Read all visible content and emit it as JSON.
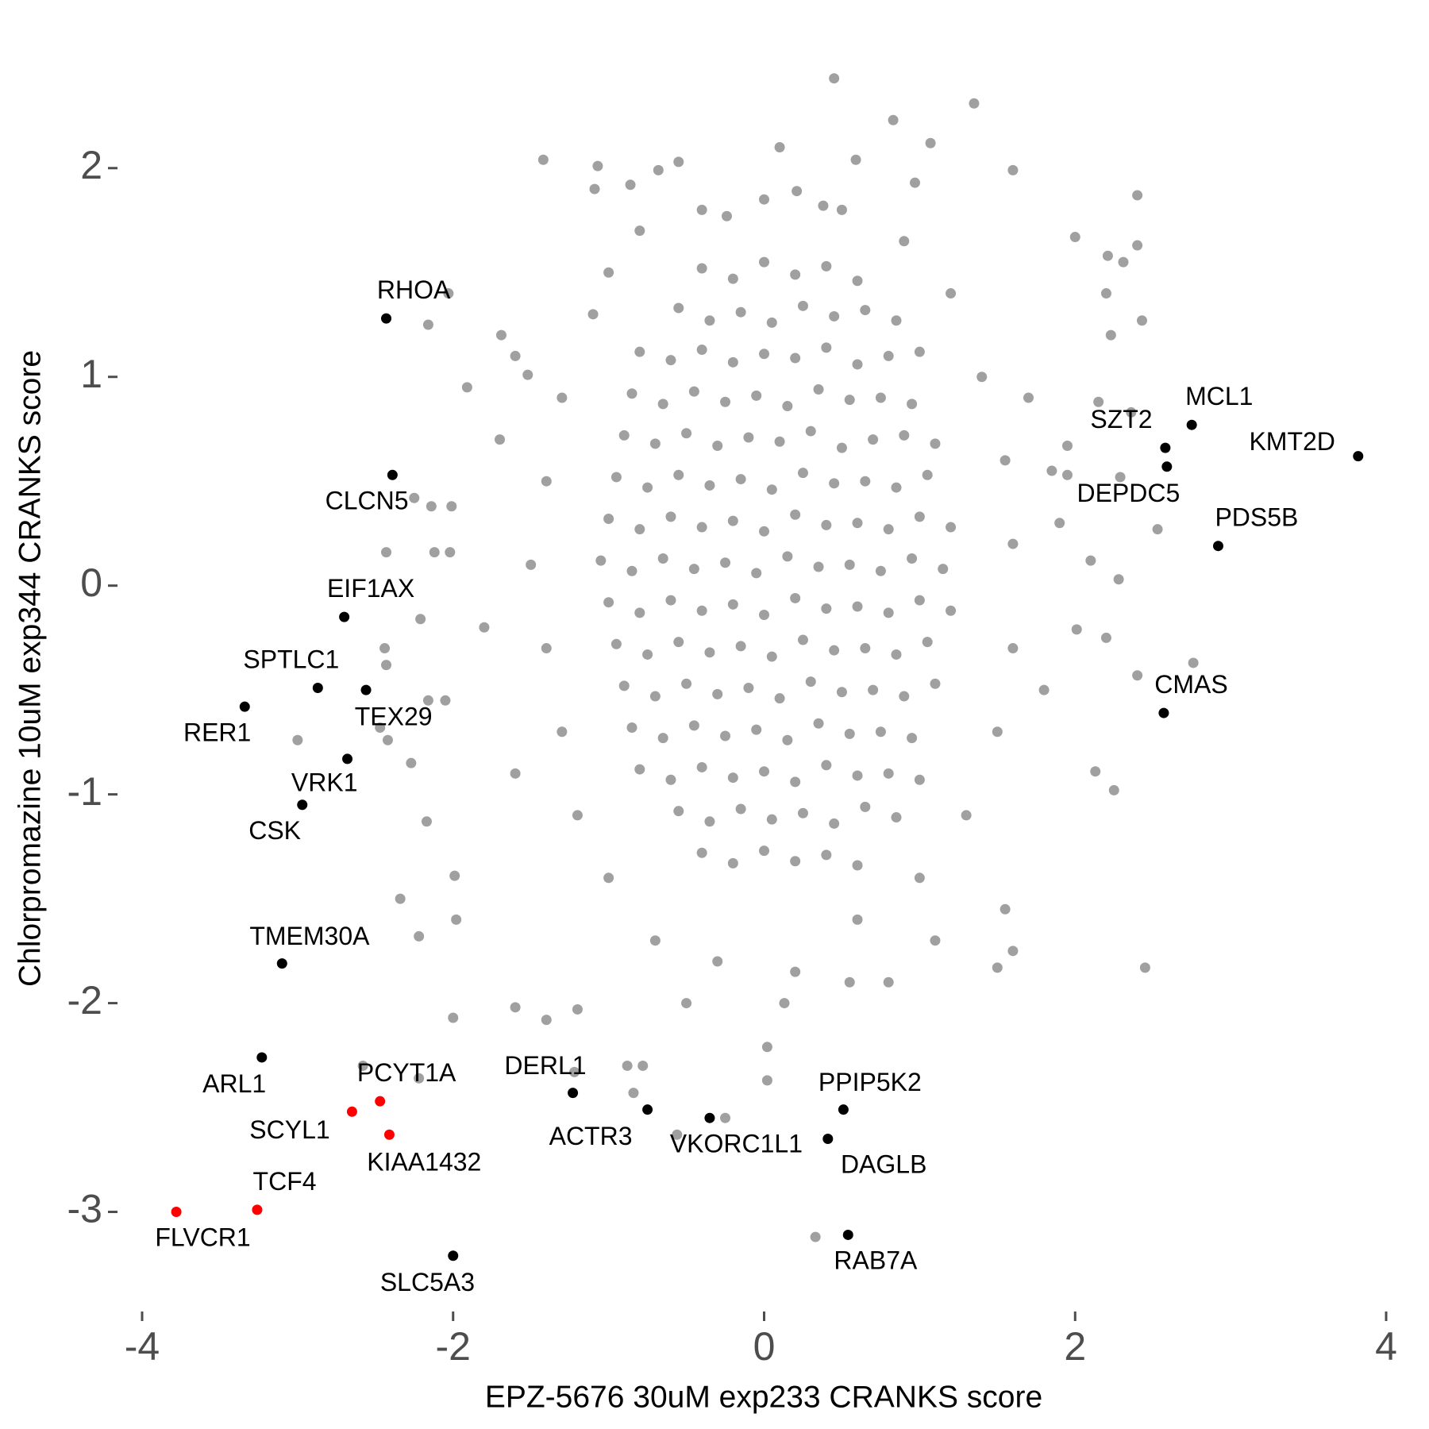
{
  "chart_data": {
    "type": "scatter",
    "x_label": "EPZ-5676 30uM exp233 CRANKS score",
    "y_label": "Chlorpromazine 10uM exp344 CRANKS score",
    "xlim": [
      -4.1,
      4.1
    ],
    "ylim": [
      -3.5,
      2.6
    ],
    "xticks": [
      -4,
      -2,
      0,
      2,
      4
    ],
    "yticks": [
      -3,
      -2,
      -1,
      0,
      1,
      2
    ],
    "grid": false,
    "series": [
      {
        "color": "#a0a0a0",
        "x": [
          0.45,
          1.35,
          0.83,
          1.07,
          0.1,
          -1.42,
          -1.07,
          0.59,
          1.6,
          -0.68,
          -0.55,
          -1.09,
          -0.86,
          0.97,
          0.21,
          0.38,
          -0.24,
          2.4,
          2.4,
          2.0,
          2.21,
          2.31,
          2.2,
          2.43,
          2.23,
          -2.03,
          -2.16,
          -1.69,
          -1.91,
          -1.52,
          2.36,
          2.15,
          1.95,
          1.95,
          2.53,
          2.29,
          -2.25,
          -2.14,
          -2.01,
          -2.43,
          -2.02,
          -2.12,
          -2.21,
          -2.44,
          -2.43,
          -2.05,
          -2.16,
          -3.0,
          -2.42,
          -2.27,
          -2.47,
          -2.17,
          -1.99,
          -2.34,
          -1.98,
          -2.22,
          -2.0,
          -1.22,
          -0.88,
          -0.78,
          -0.84,
          -2.22,
          -2.58,
          -0.56,
          -0.25,
          0.02,
          0.02,
          0.33,
          2.45,
          2.25,
          2.13,
          2.4,
          2.76,
          2.2,
          2.01,
          2.28,
          1.55,
          1.6,
          1.5,
          0.13,
          0.55,
          -1.2,
          -1.4,
          -1.6,
          2.1,
          1.85,
          -1.1,
          -1.0,
          -0.8,
          -1.3,
          -1.4,
          -1.5,
          -1.4,
          -1.3,
          -1.2,
          -1.0,
          -0.7,
          -0.3,
          0.2,
          0.6,
          1.0,
          1.3,
          1.5,
          1.6,
          1.6,
          1.55,
          1.4,
          1.2,
          0.9,
          0.5,
          0.0,
          -0.4,
          1.7,
          1.8,
          -1.6,
          -1.7,
          -1.6,
          1.1,
          -0.5,
          0.8,
          -1.8,
          1.9,
          -0.4,
          -0.2,
          0,
          0.2,
          0.4,
          0.6,
          -0.55,
          -0.35,
          -0.15,
          0.05,
          0.25,
          0.45,
          0.65,
          0.85,
          -0.8,
          -0.6,
          -0.4,
          -0.2,
          0,
          0.2,
          0.4,
          0.6,
          0.8,
          1.0,
          -0.85,
          -0.65,
          -0.45,
          -0.25,
          -0.05,
          0.15,
          0.35,
          0.55,
          0.75,
          0.95,
          -0.9,
          -0.7,
          -0.5,
          -0.3,
          -0.1,
          0.1,
          0.3,
          0.5,
          0.7,
          0.9,
          1.1,
          -0.95,
          -0.75,
          -0.55,
          -0.35,
          -0.15,
          0.05,
          0.25,
          0.45,
          0.65,
          0.85,
          1.05,
          -1.0,
          -0.8,
          -0.6,
          -0.4,
          -0.2,
          0,
          0.2,
          0.4,
          0.6,
          0.8,
          1.0,
          1.2,
          -1.05,
          -0.85,
          -0.65,
          -0.45,
          -0.25,
          -0.05,
          0.15,
          0.35,
          0.55,
          0.75,
          0.95,
          1.15,
          -1.0,
          -0.8,
          -0.6,
          -0.4,
          -0.2,
          0,
          0.2,
          0.4,
          0.6,
          0.8,
          1.0,
          1.2,
          -0.95,
          -0.75,
          -0.55,
          -0.35,
          -0.15,
          0.05,
          0.25,
          0.45,
          0.65,
          0.85,
          1.05,
          -0.9,
          -0.7,
          -0.5,
          -0.3,
          -0.1,
          0.1,
          0.3,
          0.5,
          0.7,
          0.9,
          1.1,
          -0.85,
          -0.65,
          -0.45,
          -0.25,
          -0.05,
          0.15,
          0.35,
          0.55,
          0.75,
          0.95,
          -0.8,
          -0.6,
          -0.4,
          -0.2,
          0,
          0.2,
          0.4,
          0.6,
          0.8,
          1.0,
          -0.55,
          -0.35,
          -0.15,
          0.05,
          0.25,
          0.45,
          0.65,
          0.85,
          -0.4,
          -0.2,
          0,
          0.2,
          0.4,
          0.6
        ],
        "y": [
          2.43,
          2.31,
          2.23,
          2.12,
          2.1,
          2.04,
          2.01,
          2.04,
          1.99,
          1.99,
          2.03,
          1.9,
          1.92,
          1.93,
          1.89,
          1.82,
          1.77,
          1.87,
          1.63,
          1.67,
          1.58,
          1.55,
          1.4,
          1.27,
          1.2,
          1.4,
          1.25,
          1.2,
          0.95,
          1.01,
          0.83,
          0.88,
          0.67,
          0.53,
          0.27,
          0.52,
          0.42,
          0.38,
          0.38,
          0.16,
          0.16,
          0.16,
          -0.16,
          -0.3,
          -0.38,
          -0.55,
          -0.55,
          -0.74,
          -0.74,
          -0.85,
          -0.68,
          -1.13,
          -1.39,
          -1.5,
          -1.6,
          -1.68,
          -2.07,
          -2.33,
          -2.3,
          -2.3,
          -2.43,
          -2.36,
          -2.3,
          -2.63,
          -2.55,
          -2.21,
          -2.37,
          -3.12,
          -1.83,
          -0.98,
          -0.89,
          -0.43,
          -0.37,
          -0.25,
          -0.21,
          0.03,
          -1.55,
          -1.75,
          -1.83,
          -2.0,
          -1.9,
          -2.03,
          -2.08,
          -2.02,
          0.12,
          0.55,
          1.3,
          1.5,
          1.7,
          0.9,
          0.5,
          0.1,
          -0.3,
          -0.7,
          -1.1,
          -1.4,
          -1.7,
          -1.8,
          -1.85,
          -1.6,
          -1.4,
          -1.1,
          -0.7,
          -0.3,
          0.2,
          0.6,
          1.0,
          1.4,
          1.65,
          1.8,
          1.85,
          1.8,
          0.9,
          -0.5,
          -0.9,
          0.7,
          1.1,
          -1.7,
          -2.0,
          -1.9,
          -0.2,
          0.3,
          1.52,
          1.47,
          1.55,
          1.49,
          1.53,
          1.46,
          1.33,
          1.27,
          1.31,
          1.26,
          1.34,
          1.29,
          1.32,
          1.27,
          1.12,
          1.08,
          1.13,
          1.07,
          1.11,
          1.09,
          1.14,
          1.06,
          1.1,
          1.12,
          0.92,
          0.87,
          0.93,
          0.88,
          0.91,
          0.86,
          0.94,
          0.89,
          0.9,
          0.87,
          0.72,
          0.68,
          0.73,
          0.67,
          0.71,
          0.69,
          0.74,
          0.66,
          0.7,
          0.72,
          0.68,
          0.52,
          0.47,
          0.53,
          0.48,
          0.51,
          0.46,
          0.54,
          0.49,
          0.5,
          0.47,
          0.53,
          0.32,
          0.27,
          0.33,
          0.28,
          0.31,
          0.26,
          0.34,
          0.29,
          0.3,
          0.27,
          0.33,
          0.28,
          0.12,
          0.07,
          0.13,
          0.08,
          0.11,
          0.06,
          0.14,
          0.09,
          0.1,
          0.07,
          0.13,
          0.08,
          -0.08,
          -0.13,
          -0.07,
          -0.12,
          -0.09,
          -0.14,
          -0.06,
          -0.11,
          -0.1,
          -0.13,
          -0.07,
          -0.12,
          -0.28,
          -0.33,
          -0.27,
          -0.32,
          -0.29,
          -0.34,
          -0.26,
          -0.31,
          -0.3,
          -0.33,
          -0.27,
          -0.48,
          -0.53,
          -0.47,
          -0.52,
          -0.49,
          -0.54,
          -0.46,
          -0.51,
          -0.5,
          -0.53,
          -0.47,
          -0.68,
          -0.73,
          -0.67,
          -0.72,
          -0.69,
          -0.74,
          -0.66,
          -0.71,
          -0.7,
          -0.73,
          -0.88,
          -0.93,
          -0.87,
          -0.92,
          -0.89,
          -0.94,
          -0.86,
          -0.91,
          -0.9,
          -0.93,
          -1.08,
          -1.13,
          -1.07,
          -1.12,
          -1.09,
          -1.14,
          -1.06,
          -1.11,
          -1.28,
          -1.33,
          -1.27,
          -1.32,
          -1.29,
          -1.34
        ]
      },
      {
        "color": "#000000",
        "labels": [
          "RHOA",
          "CLCN5",
          "EIF1AX",
          "SPTLC1",
          "TEX29",
          "RER1",
          "VRK1",
          "CSK",
          "TMEM30A",
          "ARL1",
          "DERL1",
          "ACTR3",
          "VKORC1L1",
          "PPIP5K2",
          "DAGLB",
          "RAB7A",
          "SLC5A3",
          "SZT2",
          "DEPDC5",
          "MCL1",
          "KMT2D",
          "PDS5B",
          "CMAS"
        ],
        "x": [
          -2.43,
          -2.39,
          -2.7,
          -2.87,
          -2.56,
          -3.34,
          -2.68,
          -2.97,
          -3.1,
          -3.23,
          -1.23,
          -0.75,
          -0.35,
          0.51,
          0.41,
          0.54,
          -2.0,
          2.58,
          2.59,
          2.75,
          3.82,
          2.92,
          2.57
        ],
        "y": [
          1.28,
          0.53,
          -0.15,
          -0.49,
          -0.5,
          -0.58,
          -0.83,
          -1.05,
          -1.81,
          -2.26,
          -2.43,
          -2.51,
          -2.55,
          -2.51,
          -2.65,
          -3.11,
          -3.21,
          0.66,
          0.57,
          0.77,
          0.62,
          0.19,
          -0.61
        ]
      },
      {
        "color": "#ff0000",
        "labels": [
          "PCYT1A",
          "SCYL1",
          "KIAA1432",
          "TCF4",
          "FLVCR1"
        ],
        "x": [
          -2.47,
          -2.65,
          -2.41,
          -3.26,
          -3.78
        ],
        "y": [
          -2.47,
          -2.52,
          -2.63,
          -2.99,
          -3.0
        ]
      }
    ]
  }
}
